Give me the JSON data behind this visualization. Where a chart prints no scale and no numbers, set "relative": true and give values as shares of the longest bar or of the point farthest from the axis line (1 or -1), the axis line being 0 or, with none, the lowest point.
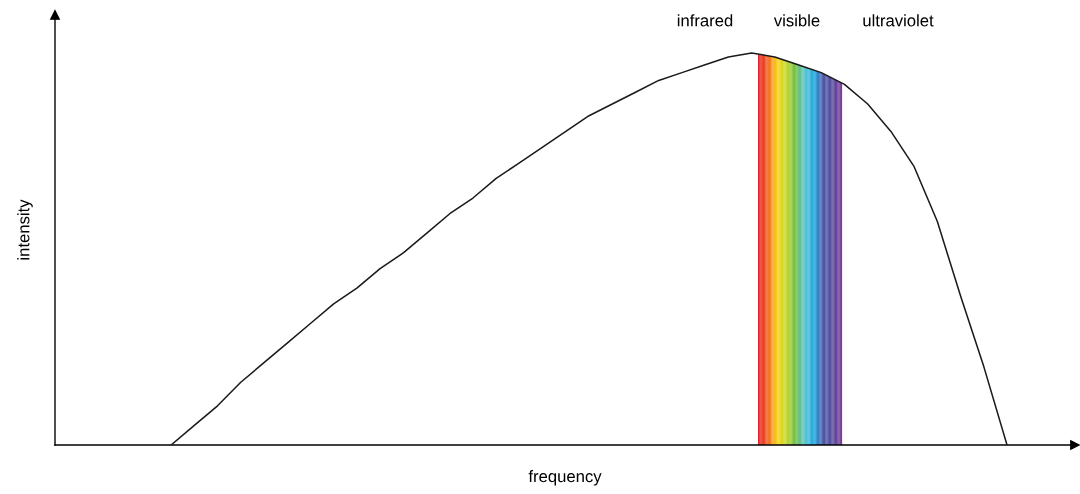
{
  "chart_data": {
    "type": "line",
    "relative": true,
    "xlabel": "frequency",
    "ylabel": "intensity",
    "categories": [
      null,
      null,
      null,
      null,
      null,
      null,
      null,
      null,
      null,
      null,
      null,
      null,
      null,
      null,
      null,
      null,
      null,
      null,
      null,
      null,
      null,
      null,
      null,
      null,
      null,
      null,
      null,
      null,
      null,
      null,
      null,
      null,
      null,
      null,
      null,
      null,
      null,
      null,
      null,
      null,
      null,
      null,
      null,
      null
    ],
    "series": [
      {
        "color": "#1a1a1a",
        "values": [
          null,
          null,
          null,
          null,
          null,
          0,
          0.05,
          0.1,
          0.16,
          0.21,
          0.26,
          0.31,
          0.36,
          0.4,
          0.45,
          0.49,
          0.54,
          0.59,
          0.63,
          0.68,
          0.72,
          0.76,
          0.8,
          0.84,
          0.87,
          0.9,
          0.93,
          0.95,
          0.97,
          0.99,
          1.0,
          0.99,
          0.97,
          0.95,
          0.92,
          0.87,
          0.8,
          0.71,
          0.57,
          0.38,
          0.2,
          0,
          null,
          null
        ]
      }
    ],
    "annotations": [
      "infrared",
      "visible",
      "ultraviolet"
    ],
    "marker": "none",
    "line_style": "solid"
  }
}
